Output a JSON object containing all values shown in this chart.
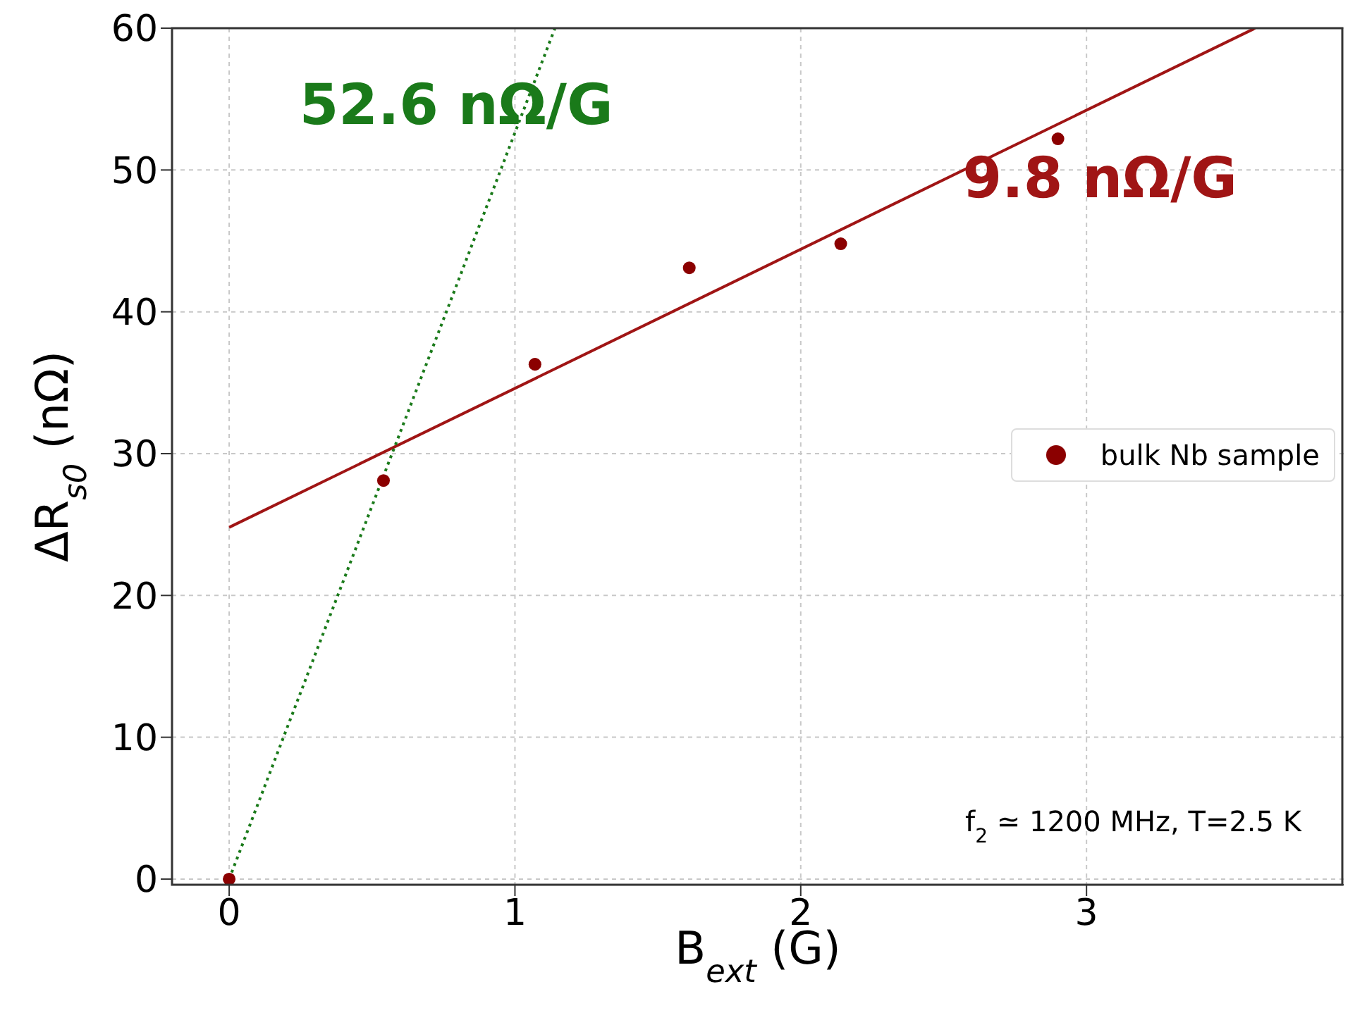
{
  "chart_data": {
    "type": "scatter",
    "xlabel": "B$_{ext}$ (G)",
    "ylabel": "ΔR$_{s0}$ (nΩ)",
    "xlim": [
      -0.2,
      3.9
    ],
    "xticks": [
      0,
      1,
      2,
      3
    ],
    "ylim": [
      -0.4,
      60
    ],
    "yticks": [
      0,
      10,
      20,
      30,
      40,
      50,
      60
    ],
    "grid": true,
    "legend": "right",
    "marker": "circle",
    "series": [
      {
        "name": "bulk Nb sample",
        "color": "#8b0000",
        "x": [
          0,
          0.54,
          1.07,
          1.61,
          2.14,
          2.9
        ],
        "values": [
          0,
          28.1,
          36.3,
          43.1,
          44.8,
          52.2
        ]
      },
      {
        "name": "9.8 nΩ/G",
        "type": "line",
        "color": "#a01515",
        "line_style": "solid",
        "marker": "none",
        "x": [
          0,
          3.59
        ],
        "values": [
          24.8,
          60
        ]
      },
      {
        "name": "52.6 nΩ/G",
        "type": "line",
        "color": "#1a7a1a",
        "line_style": "dotted",
        "marker": "none",
        "x": [
          0,
          1.14
        ],
        "values": [
          0,
          60
        ]
      }
    ],
    "annotations": [
      "f$_{2}$ ≃ 1200 MHz, T=2.5 K"
    ]
  }
}
